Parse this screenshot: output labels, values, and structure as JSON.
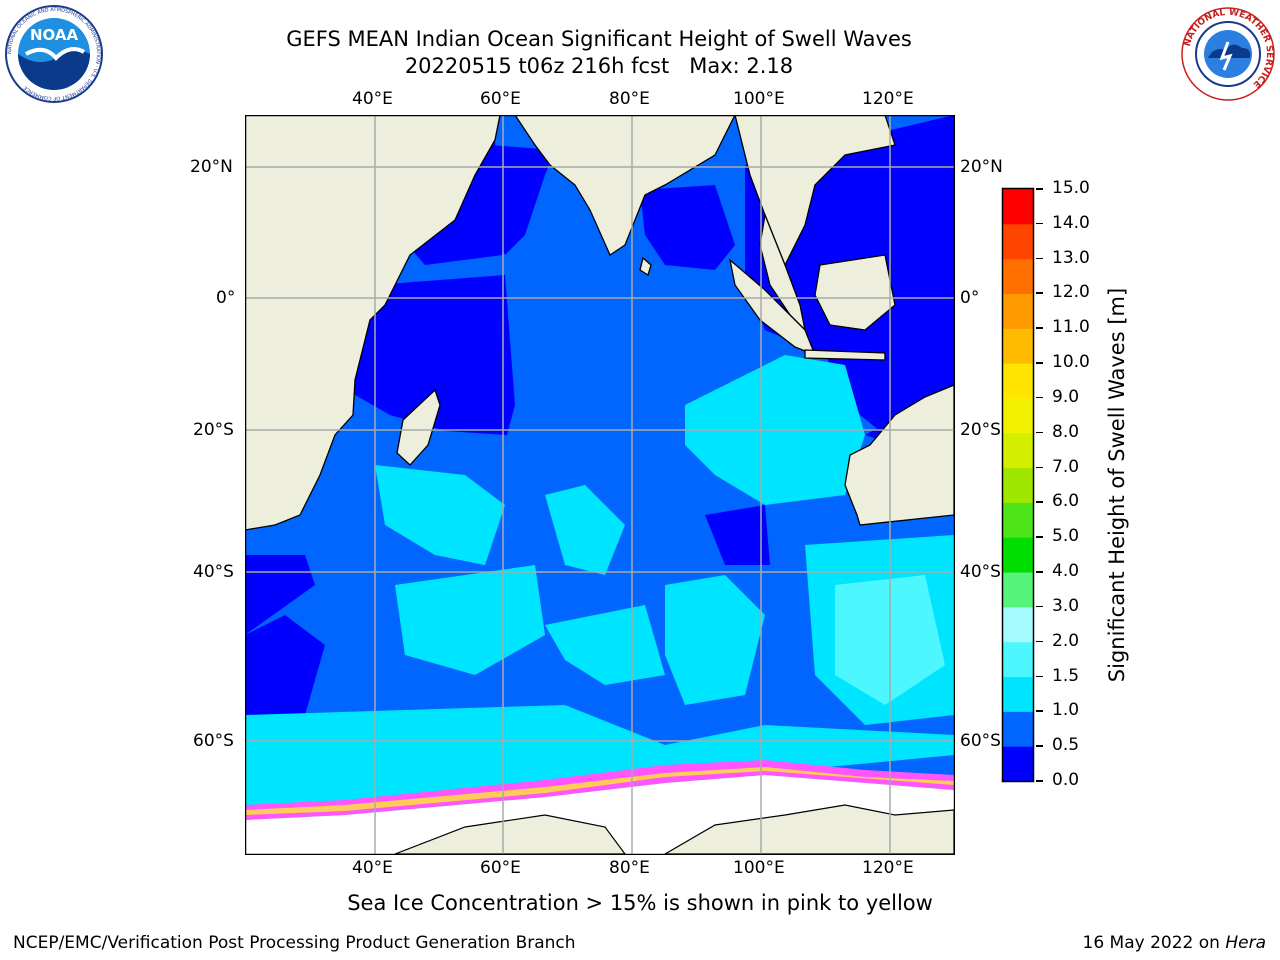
{
  "title": {
    "line1": "GEFS MEAN Indian Ocean Significant Height of Swell Waves",
    "line2": "20220515 t06z 216h fcst   Max: 2.18"
  },
  "map": {
    "lon_labels": [
      "40°E",
      "60°E",
      "80°E",
      "100°E",
      "120°E"
    ],
    "lat_labels": [
      "20°N",
      "0°",
      "20°S",
      "40°S",
      "60°S"
    ],
    "lon_range": [
      20,
      130
    ],
    "lat_range": [
      -82,
      28
    ],
    "gridlines": true
  },
  "colorbar": {
    "label": "Significant Height of Swell Waves [m]",
    "ticks": [
      "0.0",
      "0.5",
      "1.0",
      "1.5",
      "2.0",
      "3.0",
      "4.0",
      "5.0",
      "6.0",
      "7.0",
      "8.0",
      "9.0",
      "10.0",
      "11.0",
      "12.0",
      "13.0",
      "14.0",
      "15.0"
    ],
    "colors": [
      "#0000ff",
      "#0066ff",
      "#00e5ff",
      "#4cf7ff",
      "#a6fbff",
      "#54f57a",
      "#00dd00",
      "#4ee41a",
      "#9fe700",
      "#d4ee00",
      "#f2f200",
      "#ffe500",
      "#ffbb00",
      "#ff9900",
      "#ff7000",
      "#ff4400",
      "#ff0000"
    ]
  },
  "caption": "Sea Ice Concentration > 15% is shown in pink to yellow",
  "footer": {
    "left": "NCEP/EMC/Verification Post Processing Product Generation Branch",
    "date": "16 May 2022 on ",
    "host": "Hera"
  },
  "logos": {
    "noaa_text": "NOAA",
    "noaa_ring": "NATIONAL OCEANIC AND ATMOSPHERIC ADMINISTRATION · U.S. DEPARTMENT OF COMMERCE",
    "nws_ring": "NATIONAL WEATHER SERVICE"
  }
}
